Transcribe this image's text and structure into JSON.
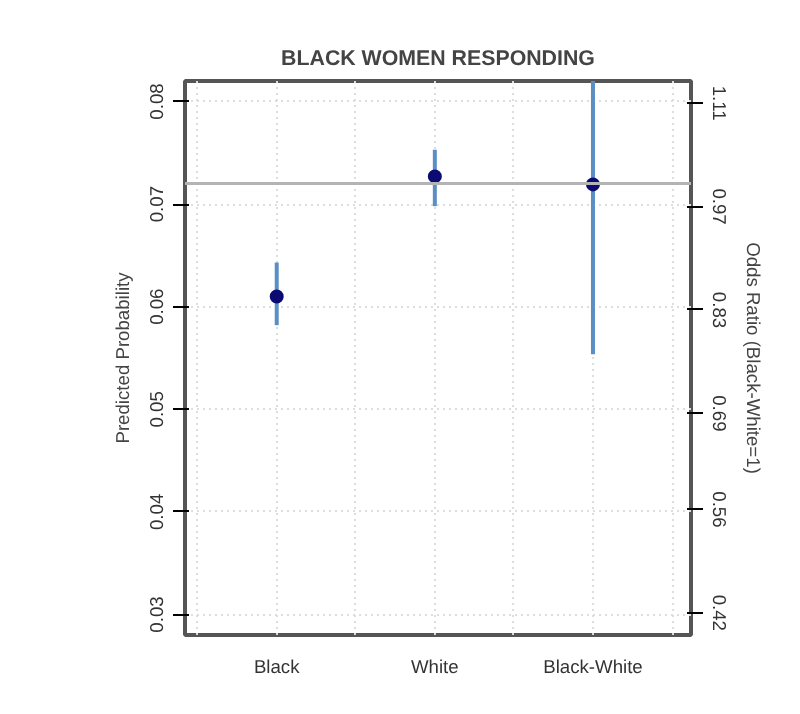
{
  "chart_data": {
    "type": "scatter",
    "title": "BLACK WOMEN RESPONDING",
    "ylabel": "Predicted Probability",
    "y2label": "Odds Ratio (Black-White=1)",
    "categories": [
      "Black",
      "White",
      "Black-White"
    ],
    "series": [
      {
        "color": "#0b0b73",
        "values": [
          0.061,
          0.0727,
          null
        ],
        "errors": [
          [
            0.0582,
            0.0643
          ],
          [
            0.0698,
            0.0753
          ],
          null
        ]
      },
      {
        "color": "#0b0b73",
        "axis": "y2",
        "values": [
          null,
          null,
          1.0
        ],
        "errors": [
          null,
          null,
          [
            0.77,
            1.14
          ]
        ]
      }
    ],
    "ylim": [
      0.028,
      0.082
    ],
    "yticks": [
      0.03,
      0.04,
      0.05,
      0.06,
      0.07,
      0.08
    ],
    "y2lim": [
      0.39,
      1.14
    ],
    "y2ticks": [
      0.42,
      0.56,
      0.69,
      0.83,
      0.97,
      1.11
    ],
    "ref_lines": [
      {
        "axis": "y",
        "value": 0.072,
        "color": "#b4b4b4"
      }
    ],
    "grid": true,
    "marker": "circle"
  }
}
